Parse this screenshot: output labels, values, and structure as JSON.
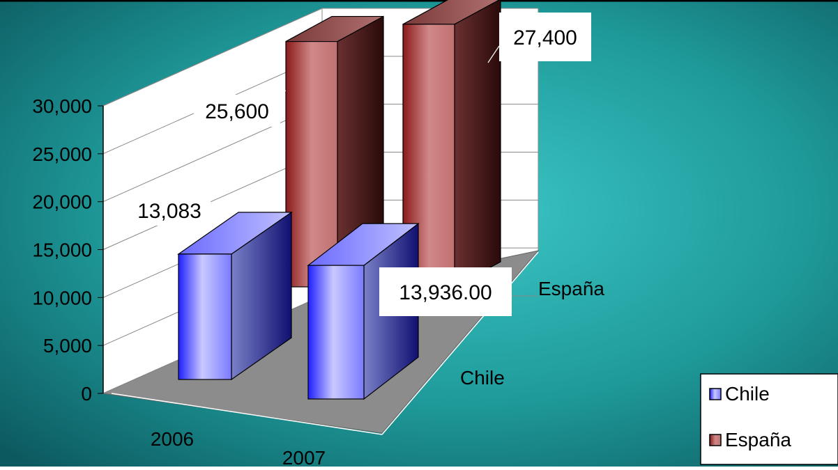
{
  "chart_data": {
    "type": "bar",
    "categories": [
      "2006",
      "2007"
    ],
    "series": [
      {
        "name": "Chile",
        "values": [
          13083,
          13936
        ]
      },
      {
        "name": "España",
        "values": [
          25600,
          27400
        ]
      }
    ],
    "data_labels": [
      "13,083",
      "13,936.00",
      "25,600",
      "27,400"
    ],
    "y_ticks": [
      "0",
      "5,000",
      "10,000",
      "15,000",
      "20,000",
      "25,000",
      "30,000"
    ],
    "ylim": [
      0,
      30000
    ],
    "depth_labels": [
      "Chile",
      "España"
    ],
    "legend": {
      "position": "bottom-right",
      "items": [
        "Chile",
        "España"
      ]
    },
    "grid": true,
    "colors": {
      "chile": "#2a2aff",
      "espana": "#8a2a2a",
      "background": "#1f9494",
      "floor": "#8c8c8c"
    }
  }
}
